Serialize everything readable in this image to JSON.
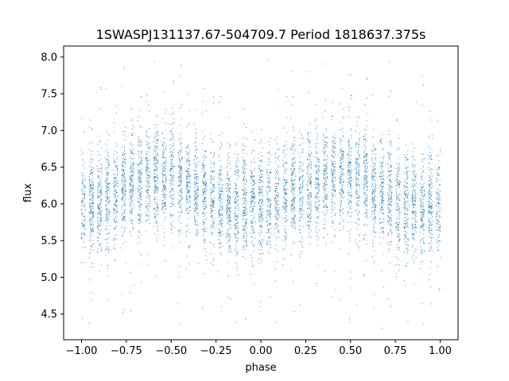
{
  "chart_data": {
    "type": "scatter",
    "title": "1SWASPJ131137.67-504709.7 Period 1818637.375s",
    "xlabel": "phase",
    "ylabel": "flux",
    "xlim": [
      -1.1,
      1.1
    ],
    "ylim": [
      4.15,
      8.15
    ],
    "xticks": [
      -1.0,
      -0.75,
      -0.5,
      -0.25,
      0.0,
      0.25,
      0.5,
      0.75,
      1.0
    ],
    "xtick_labels": [
      "−1.00",
      "−0.75",
      "−0.50",
      "−0.25",
      "0.00",
      "0.25",
      "0.50",
      "0.75",
      "1.00"
    ],
    "yticks": [
      4.5,
      5.0,
      5.5,
      6.0,
      6.5,
      7.0,
      7.5,
      8.0
    ],
    "ytick_labels": [
      "4.5",
      "5.0",
      "5.5",
      "6.0",
      "6.5",
      "7.0",
      "7.5",
      "8.0"
    ],
    "grid": false,
    "marker_color": "#1f77b4",
    "marker": "point",
    "x_range_of_points": [
      -1.0,
      1.0
    ],
    "y_range_of_points": [
      4.3,
      8.0
    ],
    "profile": {
      "phase": [
        -1.0,
        -0.9,
        -0.8,
        -0.7,
        -0.6,
        -0.5,
        -0.4,
        -0.3,
        -0.2,
        -0.1,
        0.0,
        0.1,
        0.2,
        0.3,
        0.4,
        0.5,
        0.6,
        0.7,
        0.8,
        0.9,
        1.0
      ],
      "median_flux": [
        6.0,
        6.05,
        6.15,
        6.3,
        6.4,
        6.35,
        6.25,
        6.1,
        6.0,
        5.95,
        6.0,
        6.05,
        6.15,
        6.3,
        6.4,
        6.35,
        6.25,
        6.1,
        6.0,
        5.95,
        6.0
      ],
      "spread": [
        0.35,
        0.35,
        0.35,
        0.35,
        0.35,
        0.35,
        0.35,
        0.35,
        0.35,
        0.35,
        0.35,
        0.35,
        0.35,
        0.35,
        0.35,
        0.35,
        0.35,
        0.35,
        0.35,
        0.35,
        0.35
      ]
    },
    "n_points": 7000
  }
}
